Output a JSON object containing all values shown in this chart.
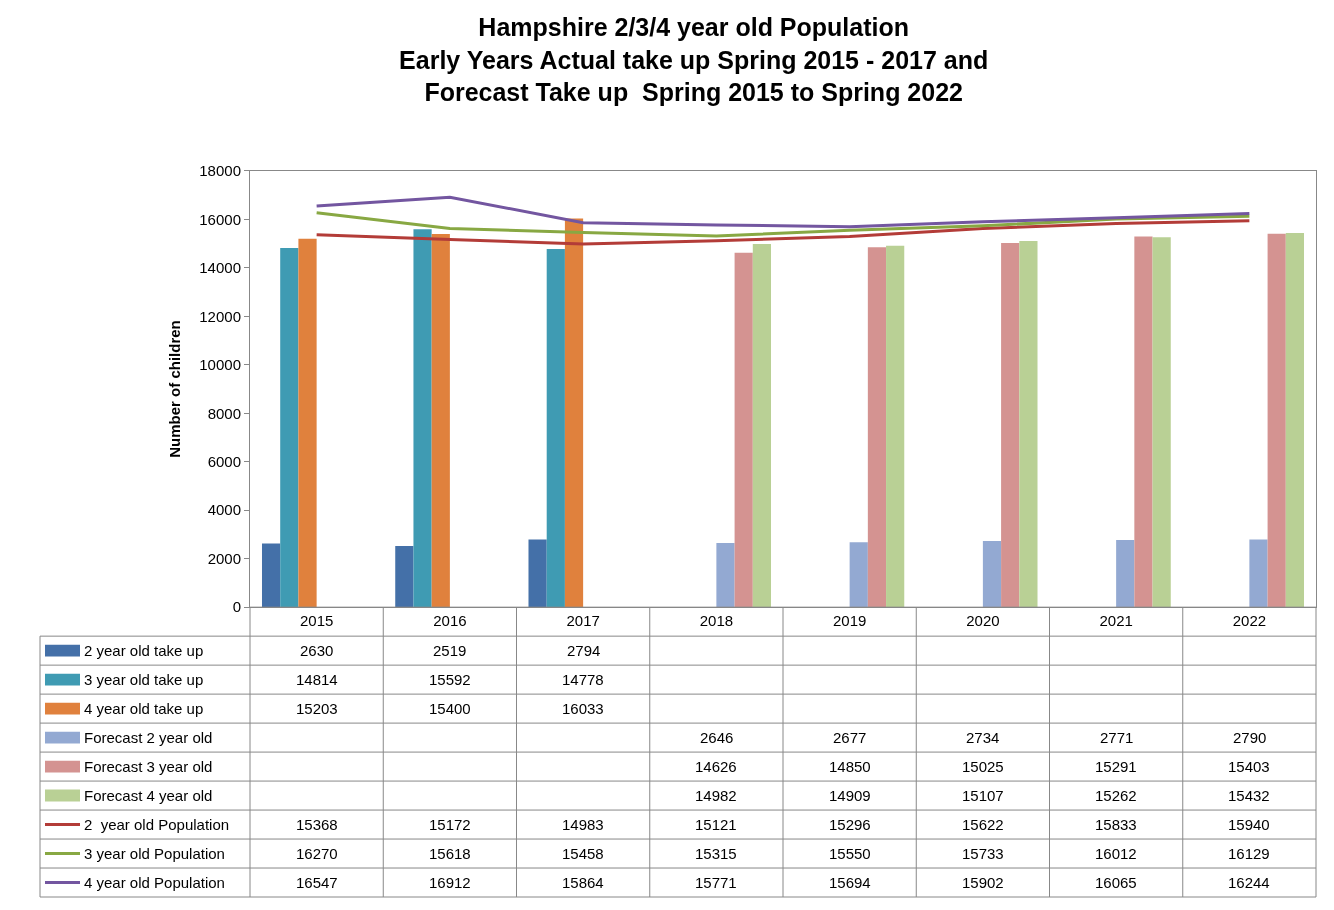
{
  "chart_data": {
    "type": "bar",
    "title": "Hampshire 2/3/4 year old Population\nEarly Years Actual take up Spring 2015 - 2017 and\nForecast Take up  Spring 2015 to Spring 2022",
    "ylabel": "Number of children",
    "categories": [
      "2015",
      "2016",
      "2017",
      "2018",
      "2019",
      "2020",
      "2021",
      "2022"
    ],
    "ylim": [
      0,
      18000
    ],
    "yticks": [
      0,
      2000,
      4000,
      6000,
      8000,
      10000,
      12000,
      14000,
      16000,
      18000
    ],
    "data_labels": true,
    "legend": "bottom left",
    "marker": "none",
    "line_style": "solid",
    "series": [
      {
        "name": "2 year old take up",
        "color": "#4470a8",
        "values": [
          2630,
          2519,
          2794,
          null,
          null,
          null,
          null,
          null
        ]
      },
      {
        "name": "3 year old take up",
        "color": "#3f9bb3",
        "values": [
          14814,
          15592,
          14778,
          null,
          null,
          null,
          null,
          null
        ]
      },
      {
        "name": "4 year old take up",
        "color": "#e0813d",
        "values": [
          15203,
          15400,
          16033,
          null,
          null,
          null,
          null,
          null
        ]
      },
      {
        "name": "Forecast 2 year old",
        "color": "#93a9d2",
        "values": [
          null,
          null,
          null,
          2646,
          2677,
          2734,
          2771,
          2790
        ]
      },
      {
        "name": "Forecast 3 year old",
        "color": "#d49391",
        "values": [
          null,
          null,
          null,
          14626,
          14850,
          15025,
          15291,
          15403
        ]
      },
      {
        "name": "Forecast 4 year old",
        "color": "#b9d095",
        "values": [
          null,
          null,
          null,
          14982,
          14909,
          15107,
          15262,
          15432
        ]
      },
      {
        "name": "2  year old Population",
        "type": "line",
        "color": "#b33c38",
        "values": [
          15368,
          15172,
          14983,
          15121,
          15296,
          15622,
          15833,
          15940
        ]
      },
      {
        "name": "3 year old Population",
        "type": "line",
        "color": "#88a843",
        "values": [
          16270,
          15618,
          15458,
          15315,
          15550,
          15733,
          16012,
          16129
        ]
      },
      {
        "name": "4 year old Population",
        "type": "line",
        "color": "#7356a0",
        "values": [
          16547,
          16912,
          15864,
          15771,
          15694,
          15902,
          16065,
          16244
        ]
      }
    ]
  }
}
